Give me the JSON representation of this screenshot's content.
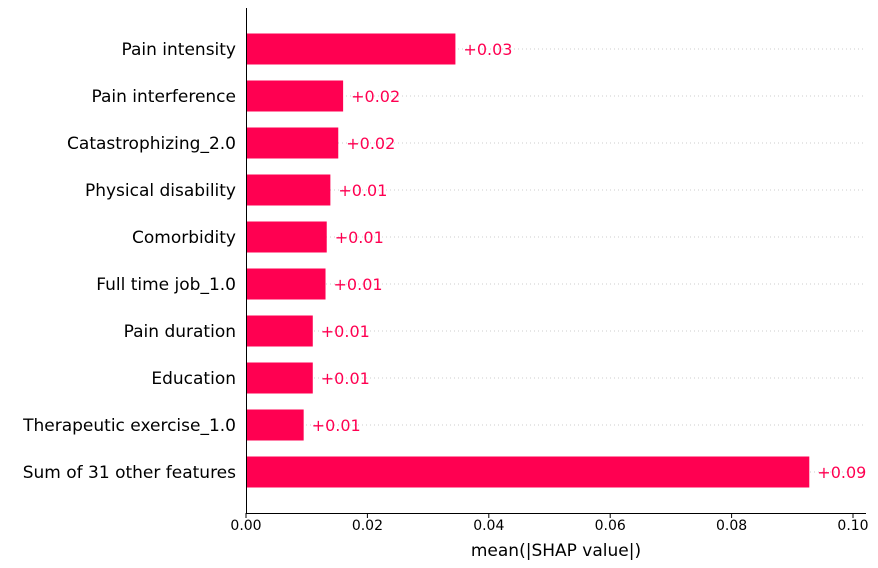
{
  "chart_data": {
    "type": "bar",
    "orientation": "horizontal",
    "xlabel": "mean(|SHAP value|)",
    "xlim": [
      0.0,
      0.102
    ],
    "xticks": [
      "0.00",
      "0.02",
      "0.04",
      "0.06",
      "0.08",
      "0.10"
    ],
    "xtick_values": [
      0.0,
      0.02,
      0.04,
      0.06,
      0.08,
      0.1
    ],
    "grid": "horizontal dotted guide lines",
    "bar_color": "#ff0051",
    "label_color": "#ff0051",
    "categories": [
      "Pain intensity",
      "Pain interference",
      "Catastrophizing_2.0",
      "Physical disability",
      "Comorbidity",
      "Full time job_1.0",
      "Pain duration",
      "Education",
      "Therapeutic exercise_1.0",
      "Sum of 31 other features"
    ],
    "values": [
      0.0345,
      0.016,
      0.0152,
      0.0139,
      0.0133,
      0.0131,
      0.011,
      0.011,
      0.0095,
      0.0928
    ],
    "value_labels": [
      "+0.03",
      "+0.02",
      "+0.02",
      "+0.01",
      "+0.01",
      "+0.01",
      "+0.01",
      "+0.01",
      "+0.01",
      "+0.09"
    ]
  }
}
